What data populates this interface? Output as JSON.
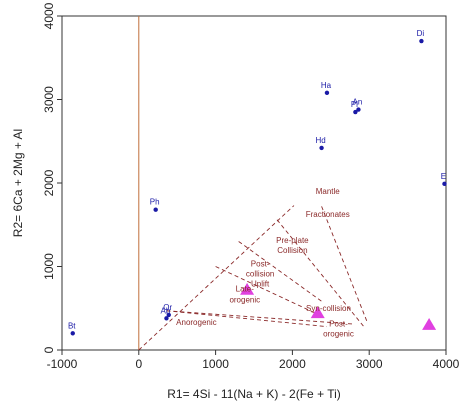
{
  "colors": {
    "axis": "#333333",
    "point": "#1a1aa6",
    "point_label": "#1a1aa6",
    "boundary": "#8b2a2a",
    "zero_line": "#c0703c",
    "sample": "#e040e0"
  },
  "chart_data": {
    "type": "scatter",
    "xlabel": "R1= 4Si - 11(Na + K) - 2(Fe + Ti)",
    "ylabel": "R2= 6Ca + 2Mg + Al",
    "xlim": [
      -1000,
      4000
    ],
    "ylim": [
      0,
      4000
    ],
    "xticks": [
      "-1000",
      "0",
      "1000",
      "2000",
      "3000",
      "4000"
    ],
    "yticks": [
      "0",
      "1000",
      "2000",
      "3000",
      "4000"
    ],
    "grid": false,
    "reference_points": [
      {
        "label": "Di",
        "x": 3680,
        "y": 3700
      },
      {
        "label": "Ha",
        "x": 2450,
        "y": 3080
      },
      {
        "label": "Pl",
        "x": 2820,
        "y": 2850
      },
      {
        "label": "An",
        "x": 2860,
        "y": 2880
      },
      {
        "label": "Hd",
        "x": 2380,
        "y": 2420
      },
      {
        "label": "E",
        "x": 3980,
        "y": 1990
      },
      {
        "label": "Ph",
        "x": 220,
        "y": 1680
      },
      {
        "label": "Ab",
        "x": 360,
        "y": 380
      },
      {
        "label": "Or",
        "x": 390,
        "y": 420
      },
      {
        "label": "Bt",
        "x": -860,
        "y": 200
      }
    ],
    "samples": [
      {
        "x": 1410,
        "y": 720
      },
      {
        "x": 2330,
        "y": 440
      },
      {
        "x": 3780,
        "y": 300
      }
    ],
    "field_labels": [
      {
        "text": "Mantle",
        "x": 2460,
        "y": 1870
      },
      {
        "text": "Fractionates",
        "x": 2460,
        "y": 1590
      },
      {
        "text": "Pre-plate",
        "x": 2000,
        "y": 1280
      },
      {
        "text": "Collision",
        "x": 2000,
        "y": 1160
      },
      {
        "text": "Post-",
        "x": 1580,
        "y": 1000
      },
      {
        "text": "collision",
        "x": 1580,
        "y": 880
      },
      {
        "text": "Uplift",
        "x": 1580,
        "y": 760
      },
      {
        "text": "Late-",
        "x": 1380,
        "y": 700
      },
      {
        "text": "orogenic",
        "x": 1380,
        "y": 570
      },
      {
        "text": "Syn-collision",
        "x": 2470,
        "y": 470
      },
      {
        "text": "Anorogenic",
        "x": 750,
        "y": 300
      },
      {
        "text": "Post-",
        "x": 2600,
        "y": 280
      },
      {
        "text": "orogenic",
        "x": 2600,
        "y": 160
      }
    ],
    "boundaries": [
      {
        "from": [
          0,
          0
        ],
        "to": [
          2020,
          1730
        ]
      },
      {
        "from": [
          360,
          470
        ],
        "to": [
          2800,
          310
        ]
      },
      {
        "from": [
          360,
          470
        ],
        "to": [
          2450,
          280
        ]
      },
      {
        "from": [
          1000,
          1000
        ],
        "to": [
          2350,
          420
        ]
      },
      {
        "from": [
          1300,
          1300
        ],
        "to": [
          2400,
          570
        ]
      },
      {
        "from": [
          2380,
          1720
        ],
        "to": [
          2980,
          320
        ]
      },
      {
        "from": [
          1800,
          1560
        ],
        "to": [
          2930,
          280
        ]
      }
    ]
  }
}
